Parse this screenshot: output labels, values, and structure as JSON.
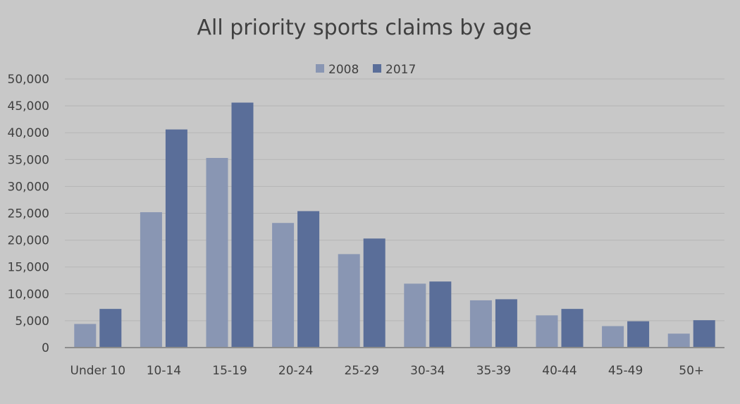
{
  "chart_data": {
    "type": "bar",
    "title": "All priority sports claims by age",
    "xlabel": "",
    "ylabel": "",
    "categories": [
      "Under 10",
      "10-14",
      "15-19",
      "20-24",
      "25-29",
      "30-34",
      "35-39",
      "40-44",
      "45-49",
      "50+"
    ],
    "series": [
      {
        "name": "2008",
        "color": "#8996b3",
        "values": [
          4400,
          25200,
          35300,
          23200,
          17400,
          11900,
          8800,
          6000,
          4000,
          2600
        ]
      },
      {
        "name": "2017",
        "color": "#5a6e99",
        "values": [
          7200,
          40600,
          45600,
          25400,
          20300,
          12300,
          9000,
          7200,
          4900,
          5100
        ]
      }
    ],
    "ylim": [
      0,
      50000
    ],
    "yticks": [
      0,
      5000,
      10000,
      15000,
      20000,
      25000,
      30000,
      35000,
      40000,
      45000,
      50000
    ],
    "ytick_labels": [
      "0",
      "5,000",
      "10,000",
      "15,000",
      "20,000",
      "25,000",
      "30,000",
      "35,000",
      "40,000",
      "45,000",
      "50,000"
    ],
    "grid": true,
    "legend": "top-center"
  }
}
